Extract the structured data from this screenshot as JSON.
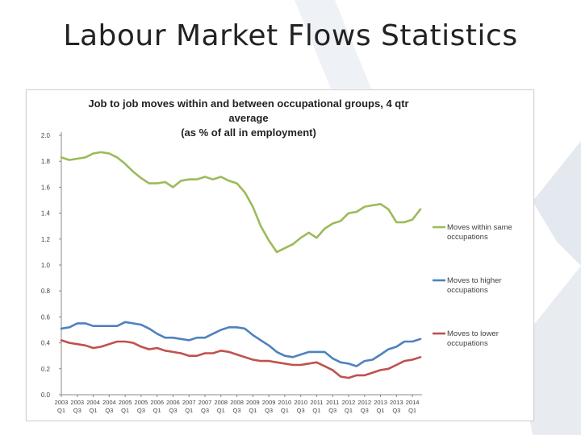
{
  "slide": {
    "title": "Labour Market Flows Statistics"
  },
  "colors": {
    "green": "#9bbb59",
    "blue": "#4f81bd",
    "red": "#c0504d",
    "watermark": "#eef1f5"
  },
  "chart_data": {
    "type": "line",
    "title": "Job to job moves within and between occupational groups, 4 qtr average",
    "subtitle": "(as % of all in employment)",
    "xlabel": "",
    "ylabel": "",
    "ylim": [
      0,
      2.0
    ],
    "yticks": [
      "0.0",
      "0.2",
      "0.4",
      "0.6",
      "0.8",
      "1.0",
      "1.2",
      "1.4",
      "1.6",
      "1.8",
      "2.0"
    ],
    "x_tick_years": [
      "2003",
      "2003",
      "2004",
      "2004",
      "2005",
      "2005",
      "2006",
      "2006",
      "2007",
      "2007",
      "2008",
      "2008",
      "2009",
      "2009",
      "2010",
      "2010",
      "2011",
      "2011",
      "2012",
      "2012",
      "2013",
      "2013",
      "2014"
    ],
    "x_tick_quarters": [
      "Q1",
      "Q3",
      "Q1",
      "Q3",
      "Q1",
      "Q3",
      "Q1",
      "Q3",
      "Q1",
      "Q3",
      "Q1",
      "Q3",
      "Q1",
      "Q3",
      "Q1",
      "Q3",
      "Q1",
      "Q3",
      "Q1",
      "Q3",
      "Q1",
      "Q3",
      "Q1"
    ],
    "x": [
      "2003 Q1",
      "2003 Q2",
      "2003 Q3",
      "2003 Q4",
      "2004 Q1",
      "2004 Q2",
      "2004 Q3",
      "2004 Q4",
      "2005 Q1",
      "2005 Q2",
      "2005 Q3",
      "2005 Q4",
      "2006 Q1",
      "2006 Q2",
      "2006 Q3",
      "2006 Q4",
      "2007 Q1",
      "2007 Q2",
      "2007 Q3",
      "2007 Q4",
      "2008 Q1",
      "2008 Q2",
      "2008 Q3",
      "2008 Q4",
      "2009 Q1",
      "2009 Q2",
      "2009 Q3",
      "2009 Q4",
      "2010 Q1",
      "2010 Q2",
      "2010 Q3",
      "2010 Q4",
      "2011 Q1",
      "2011 Q2",
      "2011 Q3",
      "2011 Q4",
      "2012 Q1",
      "2012 Q2",
      "2012 Q3",
      "2012 Q4",
      "2013 Q1",
      "2013 Q2",
      "2013 Q3",
      "2013 Q4",
      "2014 Q1",
      "2014 Q2"
    ],
    "series": [
      {
        "name": "Moves within same occupations",
        "color": "#9bbb59",
        "values": [
          1.83,
          1.81,
          1.82,
          1.83,
          1.86,
          1.87,
          1.86,
          1.83,
          1.78,
          1.72,
          1.67,
          1.63,
          1.63,
          1.64,
          1.6,
          1.65,
          1.66,
          1.66,
          1.68,
          1.66,
          1.68,
          1.65,
          1.63,
          1.56,
          1.45,
          1.3,
          1.19,
          1.1,
          1.13,
          1.16,
          1.21,
          1.25,
          1.21,
          1.28,
          1.32,
          1.34,
          1.4,
          1.41,
          1.45,
          1.46,
          1.47,
          1.43,
          1.33,
          1.33,
          1.35,
          1.43
        ]
      },
      {
        "name": "Moves to higher occupations",
        "color": "#4f81bd",
        "values": [
          0.51,
          0.52,
          0.55,
          0.55,
          0.53,
          0.53,
          0.53,
          0.53,
          0.56,
          0.55,
          0.54,
          0.51,
          0.47,
          0.44,
          0.44,
          0.43,
          0.42,
          0.44,
          0.44,
          0.47,
          0.5,
          0.52,
          0.52,
          0.51,
          0.46,
          0.42,
          0.38,
          0.33,
          0.3,
          0.29,
          0.31,
          0.33,
          0.33,
          0.33,
          0.28,
          0.25,
          0.24,
          0.22,
          0.26,
          0.27,
          0.31,
          0.35,
          0.37,
          0.41,
          0.41,
          0.43
        ]
      },
      {
        "name": "Moves to lower occupations",
        "color": "#c0504d",
        "values": [
          0.42,
          0.4,
          0.39,
          0.38,
          0.36,
          0.37,
          0.39,
          0.41,
          0.41,
          0.4,
          0.37,
          0.35,
          0.36,
          0.34,
          0.33,
          0.32,
          0.3,
          0.3,
          0.32,
          0.32,
          0.34,
          0.33,
          0.31,
          0.29,
          0.27,
          0.26,
          0.26,
          0.25,
          0.24,
          0.23,
          0.23,
          0.24,
          0.25,
          0.22,
          0.19,
          0.14,
          0.13,
          0.15,
          0.15,
          0.17,
          0.19,
          0.2,
          0.23,
          0.26,
          0.27,
          0.29
        ]
      }
    ],
    "legend": [
      {
        "line1": "Moves within same",
        "line2": "occupations",
        "color": "#9bbb59"
      },
      {
        "line1": "Moves to higher",
        "line2": "occupations",
        "color": "#4f81bd"
      },
      {
        "line1": "Moves to lower",
        "line2": "occupations",
        "color": "#c0504d"
      }
    ],
    "legend_position": "right",
    "grid": false
  }
}
